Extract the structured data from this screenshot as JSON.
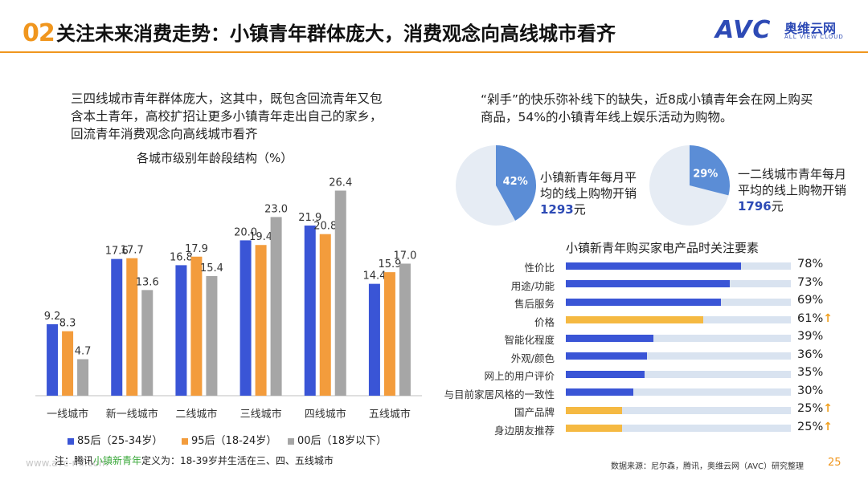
{
  "header": {
    "number": "02",
    "title": "关注未来消费走势：小镇青年群体庞大，消费观念向高线城市看齐"
  },
  "logo": {
    "mark": "AVC",
    "cn": "奥维云网",
    "en": "ALL VIEW CLOUD"
  },
  "left_intro": "三四线城市青年群体庞大，这其中，既包含回流青年又包含本土青年，高校扩招让更多小镇青年走出自己的家乡，回流青年消费观念向高线城市看齐",
  "right_intro": "“剁手”的快乐弥补线下的缺失，近8成小镇青年会在网上购买商品，54%的小镇青年线上娱乐活动为购物。",
  "footnote": {
    "prefix": "注：腾讯",
    "highlight": "小镇新青年",
    "suffix": "定义为：18-39岁并生活在三、四、五线城市"
  },
  "watermark_url": "www.avc-mr.com",
  "source": "数据来源：尼尔森，腾讯，奥维云网（AVC）研究整理",
  "page_number": "25",
  "colors": {
    "blue": "#3a55d6",
    "orange": "#f39c3c",
    "gray": "#a6a6a6",
    "yellow": "#f5b942",
    "track": "#d9e3f0",
    "pie_bg": "#e6ecf4",
    "pie_fg": "#5b8dd6",
    "accent": "#f0961e"
  },
  "chart_data": [
    {
      "type": "bar",
      "title": "各城市级别年龄段结构（%）",
      "categories": [
        "一线城市",
        "新一线城市",
        "二线城市",
        "三线城市",
        "四线城市",
        "五线城市"
      ],
      "series": [
        {
          "name": "85后（25-34岁）",
          "values": [
            9.2,
            17.6,
            16.8,
            20.0,
            21.9,
            14.4
          ]
        },
        {
          "name": "95后（18-24岁）",
          "values": [
            8.3,
            17.7,
            17.9,
            19.4,
            20.8,
            15.9
          ]
        },
        {
          "name": "00后（18岁以下）",
          "values": [
            4.7,
            13.6,
            15.4,
            23.0,
            26.4,
            17.0
          ]
        }
      ],
      "ylim": [
        0,
        28
      ],
      "legend": "bottom"
    },
    {
      "type": "pie",
      "title": "小镇新青年每月平均的线上购物开销",
      "slice_label": "42%",
      "slice_value": 42,
      "amount": "1293",
      "unit": "元",
      "label_lines": [
        "小镇新青年每月平",
        "均的线上购物开销"
      ]
    },
    {
      "type": "pie",
      "title": "一二线城市青年每月平均的线上购物开销",
      "slice_label": "29%",
      "slice_value": 29,
      "amount": "1796",
      "unit": "元",
      "label_lines": [
        "一二线城市青年每月",
        "平均的线上购物开销"
      ]
    },
    {
      "type": "bar",
      "orientation": "horizontal",
      "title": "小镇新青年购买家电产品时关注要素",
      "categories": [
        "性价比",
        "用途/功能",
        "售后服务",
        "价格",
        "智能化程度",
        "外观/颜色",
        "网上的用户评价",
        "与目前家居风格的一致性",
        "国产品牌",
        "身边朋友推荐"
      ],
      "values": [
        78,
        73,
        69,
        61,
        39,
        36,
        35,
        30,
        25,
        25
      ],
      "labels": [
        "78%",
        "73%",
        "69%",
        "61%",
        "39%",
        "36%",
        "35%",
        "30%",
        "25%",
        "25%"
      ],
      "highlighted": [
        false,
        false,
        false,
        true,
        false,
        false,
        false,
        false,
        true,
        true
      ],
      "xlim": [
        0,
        100
      ]
    }
  ]
}
